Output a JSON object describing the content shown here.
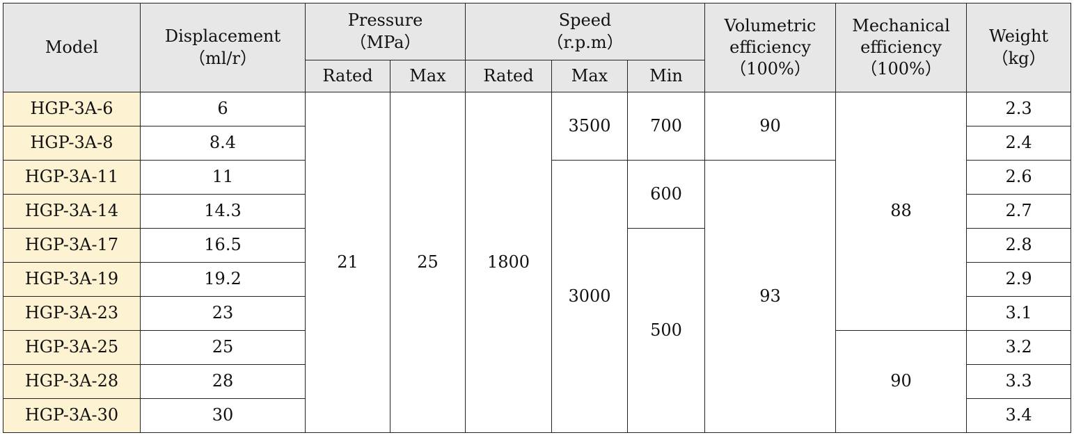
{
  "headers": {
    "model": "Model",
    "displacement": "Displacement",
    "displacement_unit": "（ml/r）",
    "pressure": "Pressure",
    "pressure_unit": "（MPa）",
    "speed": "Speed",
    "speed_unit": "（r.p.m）",
    "volumetric_1": "Volumetric",
    "volumetric_2": "efficiency",
    "volumetric_unit": "（100%）",
    "mechanical_1": "Mechanical",
    "mechanical_2": "efficiency",
    "mechanical_unit": "（100%）",
    "weight": "Weight",
    "weight_unit": "（kg）",
    "rated": "Rated",
    "max": "Max",
    "speed_rated": "Rated",
    "speed_max": "Max",
    "speed_min": "Min"
  },
  "rows": [
    {
      "model": "HGP-3A-6",
      "displacement": "6",
      "weight": "2.3"
    },
    {
      "model": "HGP-3A-8",
      "displacement": "8.4",
      "weight": "2.4"
    },
    {
      "model": "HGP-3A-11",
      "displacement": "11",
      "weight": "2.6"
    },
    {
      "model": "HGP-3A-14",
      "displacement": "14.3",
      "weight": "2.7"
    },
    {
      "model": "HGP-3A-17",
      "displacement": "16.5",
      "weight": "2.8"
    },
    {
      "model": "HGP-3A-19",
      "displacement": "19.2",
      "weight": "2.9"
    },
    {
      "model": "HGP-3A-23",
      "displacement": "23",
      "weight": "3.1"
    },
    {
      "model": "HGP-3A-25",
      "displacement": "25",
      "weight": "3.2"
    },
    {
      "model": "HGP-3A-28",
      "displacement": "28",
      "weight": "3.3"
    },
    {
      "model": "HGP-3A-30",
      "displacement": "30",
      "weight": "3.4"
    }
  ],
  "merged": {
    "pressure_rated": "21",
    "pressure_max": "25",
    "speed_rated": "1800",
    "speed_max_a": "3500",
    "speed_max_b": "3000",
    "speed_min_a": "700",
    "speed_min_b": "600",
    "speed_min_c": "500",
    "vol_eff_a": "90",
    "vol_eff_b": "93",
    "mech_eff_a": "88",
    "mech_eff_b": "90"
  }
}
